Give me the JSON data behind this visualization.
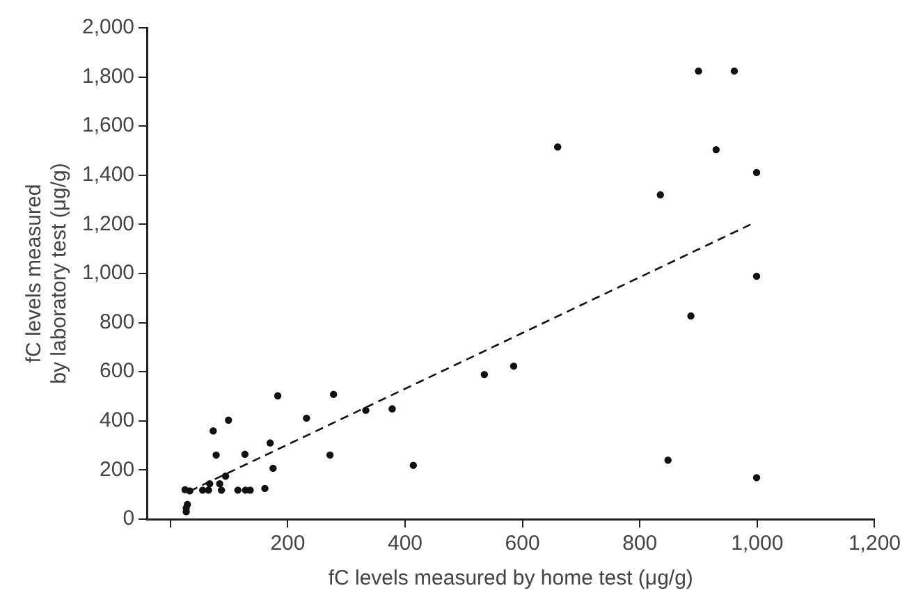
{
  "chart_data": {
    "type": "scatter",
    "xlabel": "fC levels measured by home test (μg/g)",
    "ylabel": "fC levels measured\nby laboratory test (μg/g)",
    "xlim": [
      -40,
      1200
    ],
    "xticks": [
      {
        "value": 0,
        "label": null
      },
      200,
      400,
      600,
      800,
      {
        "value": 1000,
        "label": "1,000"
      },
      {
        "value": 1200,
        "label": "1,200"
      }
    ],
    "ylim": [
      0,
      2000
    ],
    "yticks": [
      0,
      200,
      400,
      600,
      800,
      {
        "value": 1000,
        "label": "1,000"
      },
      {
        "value": 1200,
        "label": "1,200"
      },
      {
        "value": 1400,
        "label": "1,400"
      },
      {
        "value": 1600,
        "label": "1,600"
      },
      {
        "value": 1800,
        "label": "1,800"
      },
      {
        "value": 2000,
        "label": "2,000"
      }
    ],
    "grid": false,
    "legend": false,
    "series": [
      {
        "color": "#111111",
        "marker": "circle",
        "x": [
          25,
          29,
          27,
          27,
          33,
          55,
          65,
          67,
          73,
          78,
          84,
          87,
          94,
          99,
          115,
          127,
          128,
          136,
          161,
          170,
          175,
          183,
          232,
          272,
          278,
          333,
          378,
          414,
          535,
          585,
          660,
          835,
          848,
          887,
          900,
          930,
          961,
          999,
          999,
          999
        ],
        "values": [
          120,
          60,
          45,
          30,
          115,
          118,
          118,
          144,
          359,
          261,
          144,
          118,
          175,
          403,
          118,
          264,
          118,
          118,
          125,
          310,
          207,
          502,
          411,
          261,
          508,
          443,
          449,
          219,
          589,
          623,
          1515,
          1320,
          240,
          827,
          1824,
          1504,
          1824,
          1411,
          989,
          169
        ]
      },
      {
        "type": "line",
        "color": "#111111",
        "marker": "none",
        "line_style": "dashed",
        "x": [
          33,
          991
        ],
        "values": [
          114,
          1202
        ]
      }
    ]
  }
}
